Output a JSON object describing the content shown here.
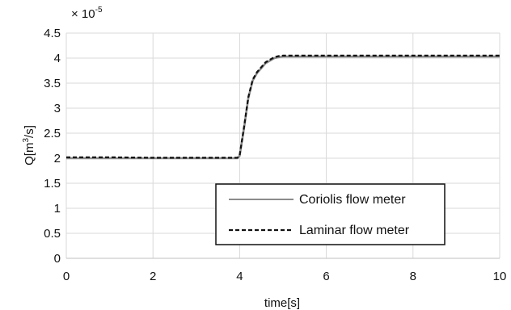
{
  "chart_data": {
    "type": "line",
    "xlabel": "time[s]",
    "ylabel_base": "Q[m",
    "ylabel_sup": "3",
    "ylabel_tail": "/s]",
    "multiplier_base": "× 10",
    "multiplier_exp": "-5",
    "xlim": [
      0,
      10
    ],
    "ylim": [
      0,
      4.5
    ],
    "xticks": [
      0,
      2,
      4,
      6,
      8,
      10
    ],
    "xtick_labels": [
      "0",
      "2",
      "4",
      "6",
      "8",
      "10"
    ],
    "yticks": [
      0,
      0.5,
      1,
      1.5,
      2,
      2.5,
      3,
      3.5,
      4,
      4.5
    ],
    "ytick_labels": [
      "0",
      "0.5",
      "1",
      "1.5",
      "2",
      "2.5",
      "3",
      "3.5",
      "4",
      "4.5"
    ],
    "grid": true,
    "legend_position": "bottom-right",
    "series": [
      {
        "name": "Coriolis flow meter",
        "color": "#8c8c8c",
        "style": "solid",
        "x": [
          0,
          1,
          2,
          3,
          3.95,
          4.0,
          4.1,
          4.2,
          4.3,
          4.4,
          4.5,
          4.6,
          4.7,
          4.8,
          4.9,
          5.0,
          6,
          7,
          8,
          9,
          10
        ],
        "y": [
          2.0,
          2.0,
          2.0,
          2.0,
          2.0,
          2.05,
          2.6,
          3.2,
          3.55,
          3.7,
          3.8,
          3.9,
          3.95,
          4.0,
          4.02,
          4.03,
          4.03,
          4.03,
          4.03,
          4.03,
          4.03
        ]
      },
      {
        "name": "Laminar flow meter",
        "color": "#111111",
        "style": "dashed",
        "x": [
          0,
          1,
          2,
          3,
          3.95,
          4.0,
          4.1,
          4.2,
          4.3,
          4.4,
          4.5,
          4.6,
          4.7,
          4.8,
          4.9,
          5.0,
          6,
          7,
          8,
          9,
          10
        ],
        "y": [
          2.02,
          2.02,
          2.01,
          2.01,
          2.01,
          2.06,
          2.62,
          3.22,
          3.57,
          3.72,
          3.82,
          3.92,
          3.97,
          4.02,
          4.04,
          4.05,
          4.05,
          4.05,
          4.05,
          4.05,
          4.05
        ]
      }
    ]
  }
}
